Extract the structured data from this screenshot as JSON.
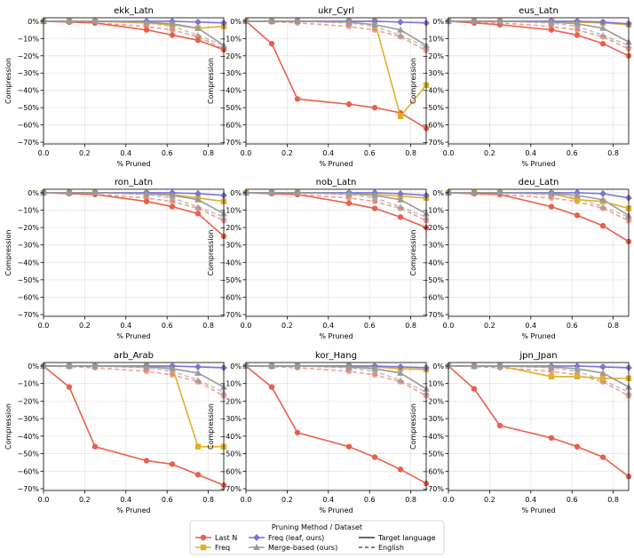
{
  "chart_data": {
    "type": "line",
    "legend": {
      "title": "Pruning Method / Dataset",
      "placement": "bottom-center",
      "method_entries": [
        {
          "key": "lastn",
          "label": "Last N",
          "color": "#e8604c",
          "marker": "circle"
        },
        {
          "key": "freq",
          "label": "Freq",
          "color": "#e0b02b",
          "marker": "square"
        },
        {
          "key": "leaf",
          "label": "Freq (leaf, ours)",
          "color": "#7b74d8",
          "marker": "diamond"
        },
        {
          "key": "merge",
          "label": "Merge-based (ours)",
          "color": "#9a9a9a",
          "marker": "triangle"
        }
      ],
      "style_entries": [
        {
          "key": "target",
          "label": "Target language",
          "dash": "solid"
        },
        {
          "key": "english",
          "label": "English",
          "dash": "dashed"
        }
      ]
    },
    "xlabel": "% Pruned",
    "ylabel": "Compression",
    "xlim": [
      0,
      0.875
    ],
    "ylim": [
      -71,
      2
    ],
    "xticks": [
      0.0,
      0.2,
      0.4,
      0.6,
      0.8
    ],
    "xtick_labels": [
      "0.0",
      "0.2",
      "0.4",
      "0.6",
      "0.8"
    ],
    "yticks": [
      0,
      -10,
      -20,
      -30,
      -40,
      -50,
      -60,
      -70
    ],
    "ytick_labels": [
      "0%",
      "−10%",
      "−20%",
      "−30%",
      "−40%",
      "−50%",
      "−60%",
      "−70%"
    ],
    "x": [
      0,
      0.125,
      0.25,
      0.5,
      0.625,
      0.75,
      0.875
    ],
    "panels": [
      {
        "title": "ekk_Latn",
        "series": [
          {
            "method": "lastn",
            "dataset": "target",
            "values": [
              0,
              -0.5,
              -1,
              -5,
              -8,
              -11,
              -16.5
            ]
          },
          {
            "method": "freq",
            "dataset": "target",
            "values": [
              0,
              0,
              0,
              -1,
              -2,
              -4,
              -3
            ]
          },
          {
            "method": "leaf",
            "dataset": "target",
            "values": [
              0,
              0,
              0,
              0,
              0,
              -0.5,
              -1
            ]
          },
          {
            "method": "merge",
            "dataset": "target",
            "values": [
              0,
              0,
              0,
              -0.5,
              -1.5,
              -4,
              -14
            ]
          },
          {
            "method": "lastn",
            "dataset": "english",
            "values": [
              0,
              -0.3,
              -1,
              -3,
              -5,
              -9,
              -16
            ]
          },
          {
            "method": "merge",
            "dataset": "english",
            "values": [
              0,
              0,
              0,
              -1,
              -3,
              -8,
              -14
            ]
          }
        ]
      },
      {
        "title": "ukr_Cyrl",
        "series": [
          {
            "method": "lastn",
            "dataset": "target",
            "values": [
              0,
              -13,
              -45,
              -48,
              -50,
              -53,
              -62
            ]
          },
          {
            "method": "freq",
            "dataset": "target",
            "values": [
              0,
              0,
              0,
              0,
              0,
              -55,
              -37
            ]
          },
          {
            "method": "leaf",
            "dataset": "target",
            "values": [
              0,
              0,
              0,
              0,
              0,
              -0.5,
              -1
            ]
          },
          {
            "method": "merge",
            "dataset": "target",
            "values": [
              0,
              0,
              0,
              -0.5,
              -2,
              -5,
              -14
            ]
          },
          {
            "method": "lastn",
            "dataset": "english",
            "values": [
              0,
              -0.3,
              -1,
              -3,
              -5,
              -9,
              -17
            ]
          },
          {
            "method": "merge",
            "dataset": "english",
            "values": [
              0,
              0,
              0,
              -1,
              -3,
              -8,
              -15
            ]
          }
        ]
      },
      {
        "title": "eus_Latn",
        "series": [
          {
            "method": "lastn",
            "dataset": "target",
            "values": [
              0,
              -1,
              -2,
              -5,
              -8,
              -13,
              -20
            ]
          },
          {
            "method": "freq",
            "dataset": "target",
            "values": [
              0,
              0,
              0,
              0,
              -0.5,
              -1,
              -2
            ]
          },
          {
            "method": "leaf",
            "dataset": "target",
            "values": [
              0,
              0,
              0,
              0,
              0,
              -0.5,
              -1.5
            ]
          },
          {
            "method": "merge",
            "dataset": "target",
            "values": [
              0,
              0,
              0,
              -0.5,
              -1.5,
              -4,
              -12
            ]
          },
          {
            "method": "lastn",
            "dataset": "english",
            "values": [
              0,
              -0.3,
              -1,
              -3,
              -5,
              -9,
              -16
            ]
          },
          {
            "method": "merge",
            "dataset": "english",
            "values": [
              0,
              0,
              0,
              -1,
              -3,
              -8,
              -14
            ]
          }
        ]
      },
      {
        "title": "ron_Latn",
        "series": [
          {
            "method": "lastn",
            "dataset": "target",
            "values": [
              0,
              -0.5,
              -1,
              -5,
              -8,
              -12,
              -25
            ]
          },
          {
            "method": "freq",
            "dataset": "target",
            "values": [
              0,
              0,
              0,
              -0.5,
              -1,
              -3,
              -5
            ]
          },
          {
            "method": "leaf",
            "dataset": "target",
            "values": [
              0,
              0,
              0,
              0,
              0,
              -0.5,
              -1.5
            ]
          },
          {
            "method": "merge",
            "dataset": "target",
            "values": [
              0,
              0,
              0,
              -0.5,
              -1.5,
              -4,
              -12
            ]
          },
          {
            "method": "lastn",
            "dataset": "english",
            "values": [
              0,
              -0.3,
              -1,
              -3,
              -5,
              -9,
              -16
            ]
          },
          {
            "method": "merge",
            "dataset": "english",
            "values": [
              0,
              0,
              0,
              -1,
              -3,
              -8,
              -14
            ]
          }
        ]
      },
      {
        "title": "nob_Latn",
        "series": [
          {
            "method": "lastn",
            "dataset": "target",
            "values": [
              0,
              -0.5,
              -1,
              -6,
              -9,
              -14,
              -20
            ]
          },
          {
            "method": "freq",
            "dataset": "target",
            "values": [
              0,
              0,
              0,
              -0.5,
              -1,
              -2,
              -3
            ]
          },
          {
            "method": "leaf",
            "dataset": "target",
            "values": [
              0,
              0,
              0,
              0,
              0,
              -0.5,
              -1.5
            ]
          },
          {
            "method": "merge",
            "dataset": "target",
            "values": [
              0,
              0,
              0,
              -0.5,
              -1.5,
              -4,
              -12
            ]
          },
          {
            "method": "lastn",
            "dataset": "english",
            "values": [
              0,
              -0.3,
              -1,
              -3,
              -5,
              -9,
              -16
            ]
          },
          {
            "method": "merge",
            "dataset": "english",
            "values": [
              0,
              0,
              0,
              -1,
              -3,
              -8,
              -14
            ]
          }
        ]
      },
      {
        "title": "deu_Latn",
        "series": [
          {
            "method": "lastn",
            "dataset": "target",
            "values": [
              0,
              -0.5,
              -1,
              -8,
              -13,
              -19,
              -28
            ]
          },
          {
            "method": "freq",
            "dataset": "target",
            "values": [
              0,
              0,
              0,
              -0.5,
              -4,
              -5,
              -9
            ]
          },
          {
            "method": "leaf",
            "dataset": "target",
            "values": [
              0,
              0,
              0,
              0,
              0,
              -0.5,
              -3
            ]
          },
          {
            "method": "merge",
            "dataset": "target",
            "values": [
              0,
              0,
              0,
              -0.5,
              -1.5,
              -4,
              -13
            ]
          },
          {
            "method": "lastn",
            "dataset": "english",
            "values": [
              0,
              -0.3,
              -1,
              -3,
              -5,
              -9,
              -16
            ]
          },
          {
            "method": "merge",
            "dataset": "english",
            "values": [
              0,
              0,
              0,
              -1,
              -3,
              -8,
              -14
            ]
          }
        ]
      },
      {
        "title": "arb_Arab",
        "series": [
          {
            "method": "lastn",
            "dataset": "target",
            "values": [
              0,
              -12,
              -46,
              -54,
              -56,
              -62,
              -68
            ]
          },
          {
            "method": "freq",
            "dataset": "target",
            "values": [
              0,
              0,
              0,
              0,
              -0.5,
              -46,
              -46
            ]
          },
          {
            "method": "leaf",
            "dataset": "target",
            "values": [
              0,
              0,
              0,
              0,
              0,
              -0.5,
              -1
            ]
          },
          {
            "method": "merge",
            "dataset": "target",
            "values": [
              0,
              0,
              0,
              -0.5,
              -1.5,
              -4,
              -12
            ]
          },
          {
            "method": "lastn",
            "dataset": "english",
            "values": [
              0,
              -0.3,
              -1,
              -3,
              -5,
              -9,
              -17
            ]
          },
          {
            "method": "merge",
            "dataset": "english",
            "values": [
              0,
              0,
              0,
              -1,
              -3,
              -8,
              -15
            ]
          }
        ]
      },
      {
        "title": "kor_Hang",
        "series": [
          {
            "method": "lastn",
            "dataset": "target",
            "values": [
              0,
              -12,
              -38,
              -46,
              -52,
              -59,
              -67
            ]
          },
          {
            "method": "freq",
            "dataset": "target",
            "values": [
              0,
              0,
              0,
              0,
              -0.5,
              -1.5,
              -2
            ]
          },
          {
            "method": "leaf",
            "dataset": "target",
            "values": [
              0,
              0,
              0,
              0,
              0,
              -0.5,
              -1
            ]
          },
          {
            "method": "merge",
            "dataset": "target",
            "values": [
              0,
              0,
              0,
              -0.5,
              -1.5,
              -4,
              -13
            ]
          },
          {
            "method": "lastn",
            "dataset": "english",
            "values": [
              0,
              -0.3,
              -1,
              -3,
              -5,
              -9,
              -17
            ]
          },
          {
            "method": "merge",
            "dataset": "english",
            "values": [
              0,
              0,
              0,
              -1,
              -3,
              -8,
              -15
            ]
          }
        ]
      },
      {
        "title": "jpn_Jpan",
        "series": [
          {
            "method": "lastn",
            "dataset": "target",
            "values": [
              0,
              -13,
              -34,
              -41,
              -46,
              -52,
              -63
            ]
          },
          {
            "method": "freq",
            "dataset": "target",
            "values": [
              0,
              0,
              0,
              -6,
              -6,
              -7,
              -7
            ]
          },
          {
            "method": "leaf",
            "dataset": "target",
            "values": [
              0,
              0,
              0,
              0,
              0,
              -0.5,
              -1
            ]
          },
          {
            "method": "merge",
            "dataset": "target",
            "values": [
              0,
              0,
              0,
              -0.5,
              -1.5,
              -4,
              -12
            ]
          },
          {
            "method": "lastn",
            "dataset": "english",
            "values": [
              0,
              -0.3,
              -1,
              -3,
              -5,
              -9,
              -17
            ]
          },
          {
            "method": "merge",
            "dataset": "english",
            "values": [
              0,
              0,
              0,
              -1,
              -3,
              -8,
              -15
            ]
          }
        ]
      }
    ]
  }
}
